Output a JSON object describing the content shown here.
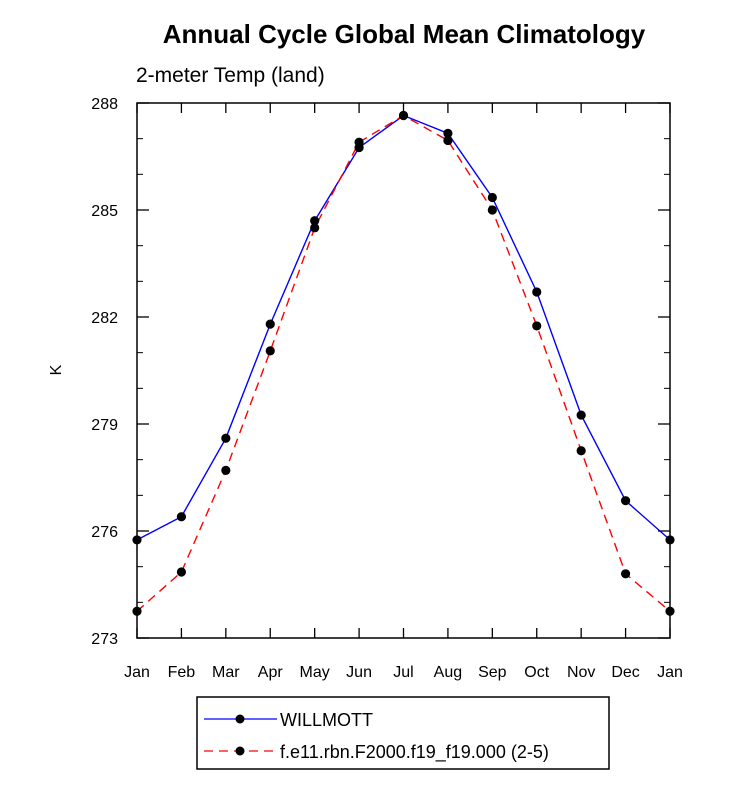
{
  "chart_data": {
    "type": "line",
    "title": "Annual Cycle Global Mean Climatology",
    "subtitle": "2-meter Temp (land)",
    "xlabel": "",
    "ylabel": "K",
    "categories": [
      "Jan",
      "Feb",
      "Mar",
      "Apr",
      "May",
      "Jun",
      "Jul",
      "Aug",
      "Sep",
      "Oct",
      "Nov",
      "Dec",
      "Jan"
    ],
    "ylim": [
      273,
      288
    ],
    "yticks": [
      "273",
      "276",
      "279",
      "282",
      "285",
      "288"
    ],
    "grid": false,
    "legend_position": "bottom",
    "series": [
      {
        "name": "WILLMOTT",
        "color": "#0000ff",
        "line_style": "solid",
        "marker": "filled-circle",
        "values": [
          275.75,
          276.4,
          278.6,
          281.8,
          284.7,
          286.75,
          287.65,
          287.15,
          285.35,
          282.7,
          279.25,
          276.85,
          275.75
        ]
      },
      {
        "name": "f.e11.rbn.F2000.f19_f19.000 (2-5)",
        "color": "#ff0000",
        "line_style": "dashed",
        "marker": "filled-circle",
        "values": [
          273.75,
          274.85,
          277.7,
          281.05,
          284.5,
          286.9,
          287.65,
          286.95,
          285.0,
          281.75,
          278.25,
          274.8,
          273.75
        ]
      }
    ]
  }
}
